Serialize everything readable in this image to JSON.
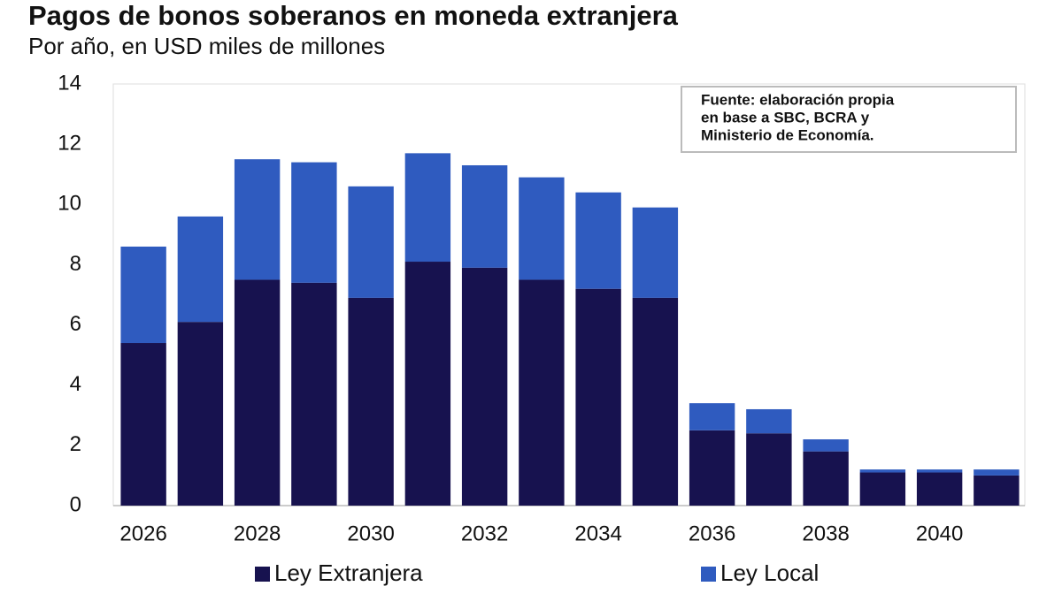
{
  "chart_data": {
    "type": "stacked_bar",
    "title": "Pagos de bonos soberanos en moneda extranjera",
    "subtitle": "Por año, en USD miles de millones",
    "annotation": [
      "Fuente: elaboración propia",
      "en base a SBC, BCRA y",
      "Ministerio de Economía."
    ],
    "categories": [
      "2026",
      null,
      "2028",
      null,
      "2030",
      null,
      "2032",
      null,
      "2034",
      null,
      "2036",
      null,
      "2038",
      null,
      "2040",
      null
    ],
    "series": [
      {
        "name": "Ley Extranjera",
        "color": "#17124f",
        "values": [
          5.4,
          6.1,
          7.5,
          7.4,
          6.9,
          8.1,
          7.9,
          7.5,
          7.2,
          6.9,
          2.5,
          2.4,
          1.8,
          1.1,
          1.1,
          1.0
        ]
      },
      {
        "name": "Ley Local",
        "color": "#2f5bbf",
        "values": [
          3.2,
          3.5,
          4.0,
          4.0,
          3.7,
          3.6,
          3.4,
          3.4,
          3.2,
          3.0,
          0.9,
          0.8,
          0.4,
          0.1,
          0.1,
          0.2
        ]
      }
    ],
    "ylim": [
      0,
      14
    ],
    "yticks": [
      0,
      2,
      4,
      6,
      8,
      10,
      12,
      14
    ],
    "grid": false,
    "legend": "bottom"
  }
}
